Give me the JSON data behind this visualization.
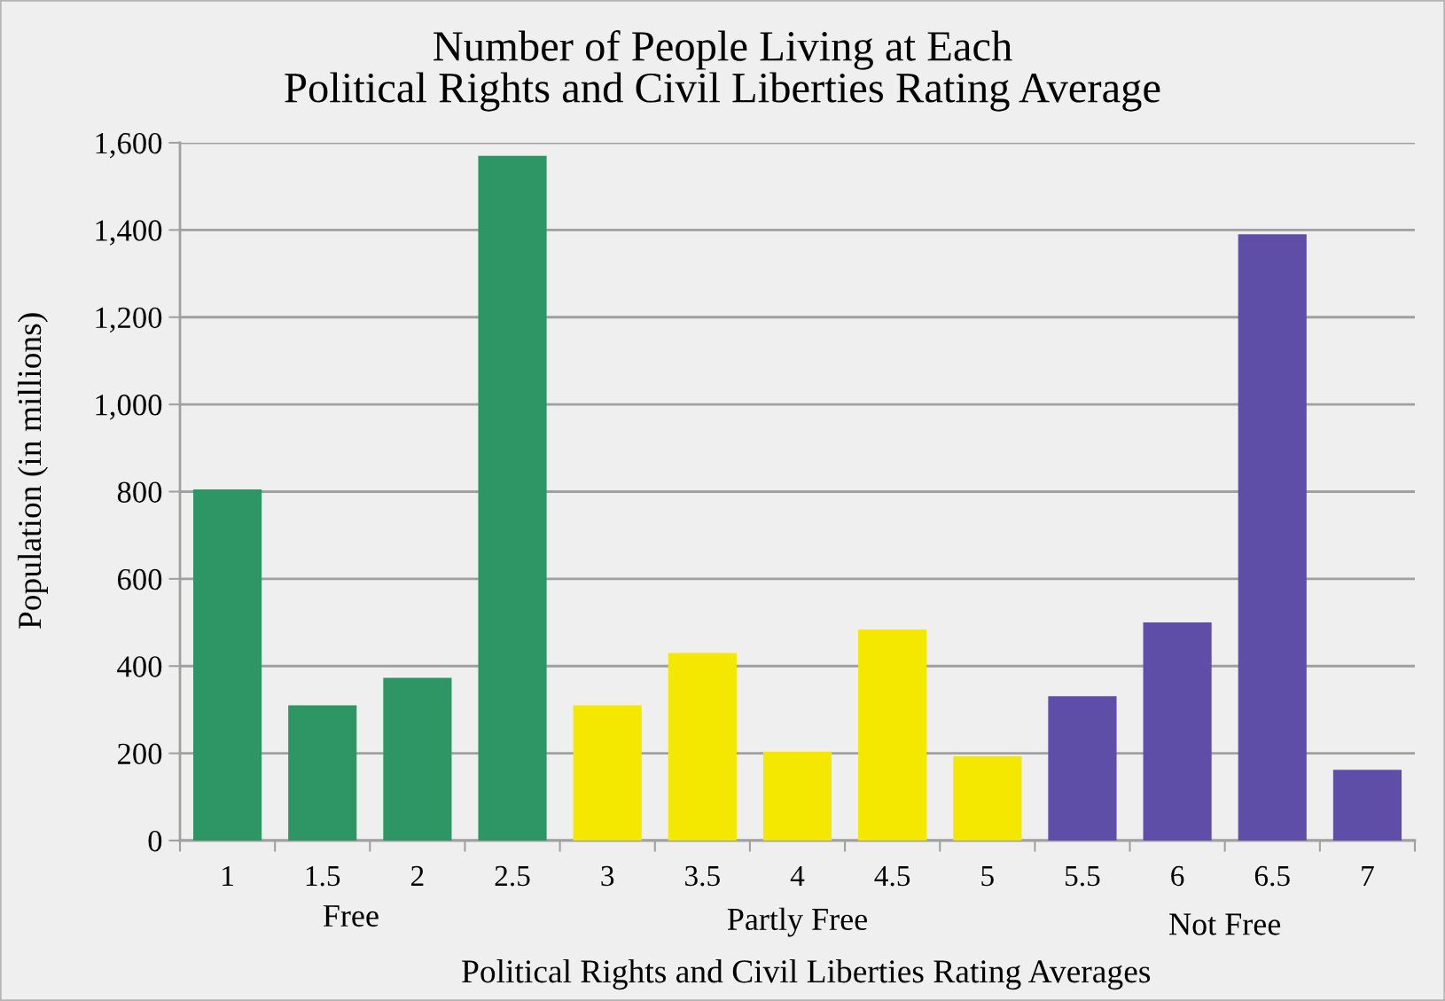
{
  "chart_data": {
    "type": "bar",
    "title": "Number of People Living at Each\nPolitical Rights and Civil Liberties Rating Average",
    "xlabel": "Political Rights and Civil Liberties Rating Averages",
    "ylabel": "Population (in millions)",
    "categories": [
      "1",
      "1.5",
      "2",
      "2.5",
      "3",
      "3.5",
      "4",
      "4.5",
      "5",
      "5.5",
      "6",
      "6.5",
      "7"
    ],
    "values": [
      805,
      310,
      373,
      1570,
      310,
      430,
      204,
      484,
      193,
      331,
      500,
      1390,
      162
    ],
    "colors": [
      "#2e9664",
      "#2e9664",
      "#2e9664",
      "#2e9664",
      "#f5e800",
      "#f5e800",
      "#f5e800",
      "#f5e800",
      "#f5e800",
      "#5f4ea8",
      "#5f4ea8",
      "#5f4ea8",
      "#5f4ea8"
    ],
    "ylim": [
      0,
      1600
    ],
    "yticks": [
      0,
      200,
      400,
      600,
      800,
      {
        "value": 1000,
        "label": "1,000"
      },
      {
        "value": 1200,
        "label": "1,200"
      },
      {
        "value": 1400,
        "label": "1,400"
      },
      {
        "value": 1600,
        "label": "1,600"
      }
    ],
    "grid": "y",
    "annotations": [
      "Free",
      "Partly Free",
      "Not Free"
    ]
  }
}
